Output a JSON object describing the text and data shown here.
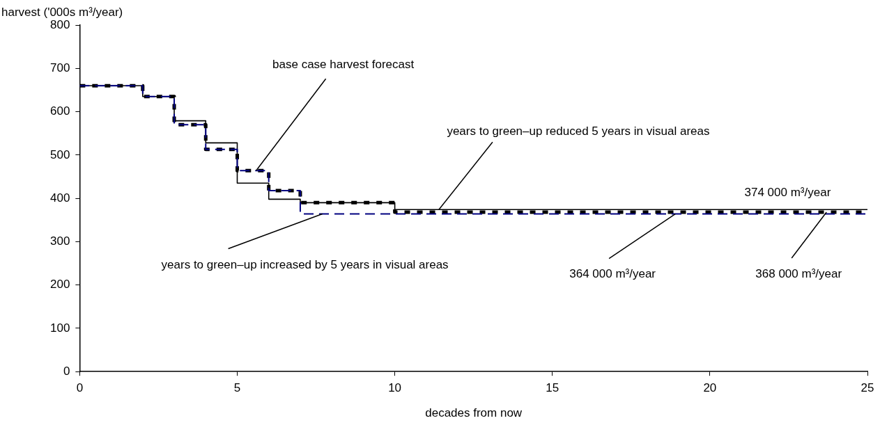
{
  "chart_data": {
    "type": "step",
    "xlabel": "decades from now",
    "ylabel": "harvest ('000s m³/year)",
    "xlim": [
      0,
      25
    ],
    "xticks": [
      0,
      5,
      10,
      15,
      20,
      25
    ],
    "ylim": [
      0,
      800
    ],
    "yticks": [
      0,
      100,
      200,
      300,
      400,
      500,
      600,
      700,
      800
    ],
    "grid": false,
    "legend": false,
    "series": [
      {
        "color": "#000080",
        "line_style": "dashed",
        "x": [
          0,
          2,
          3,
          4,
          5,
          6,
          7,
          25
        ],
        "values": [
          660,
          635,
          570,
          513,
          464,
          418,
          364,
          364
        ]
      },
      {
        "color": "#000000",
        "line_style": "solid",
        "x": [
          0,
          2,
          3,
          4,
          5,
          6,
          7,
          10,
          25
        ],
        "values": [
          660,
          635,
          579,
          528,
          435,
          398,
          390,
          374,
          374
        ]
      },
      {
        "color": "#000000",
        "line_style": "dotted",
        "x": [
          0,
          2,
          3,
          4,
          5,
          6,
          7,
          10,
          25
        ],
        "values": [
          660,
          635,
          570,
          513,
          464,
          418,
          390,
          368,
          368
        ]
      }
    ],
    "annotations": [
      {
        "text": "base case harvest forecast",
        "x": 5.6,
        "y": 464
      },
      {
        "text": "years to green–up reduced 5 years in visual areas",
        "x": 11.4,
        "y": 374
      },
      {
        "text": "374 000 m³/year",
        "x": 22.4,
        "y": 374
      },
      {
        "text": "years to green–up increased by 5 years in visual areas",
        "x": 7.7,
        "y": 364
      },
      {
        "text": "364 000 m³/year",
        "x": 18.9,
        "y": 364
      },
      {
        "text": "368 000 m³/year",
        "x": 23.7,
        "y": 368
      }
    ]
  }
}
